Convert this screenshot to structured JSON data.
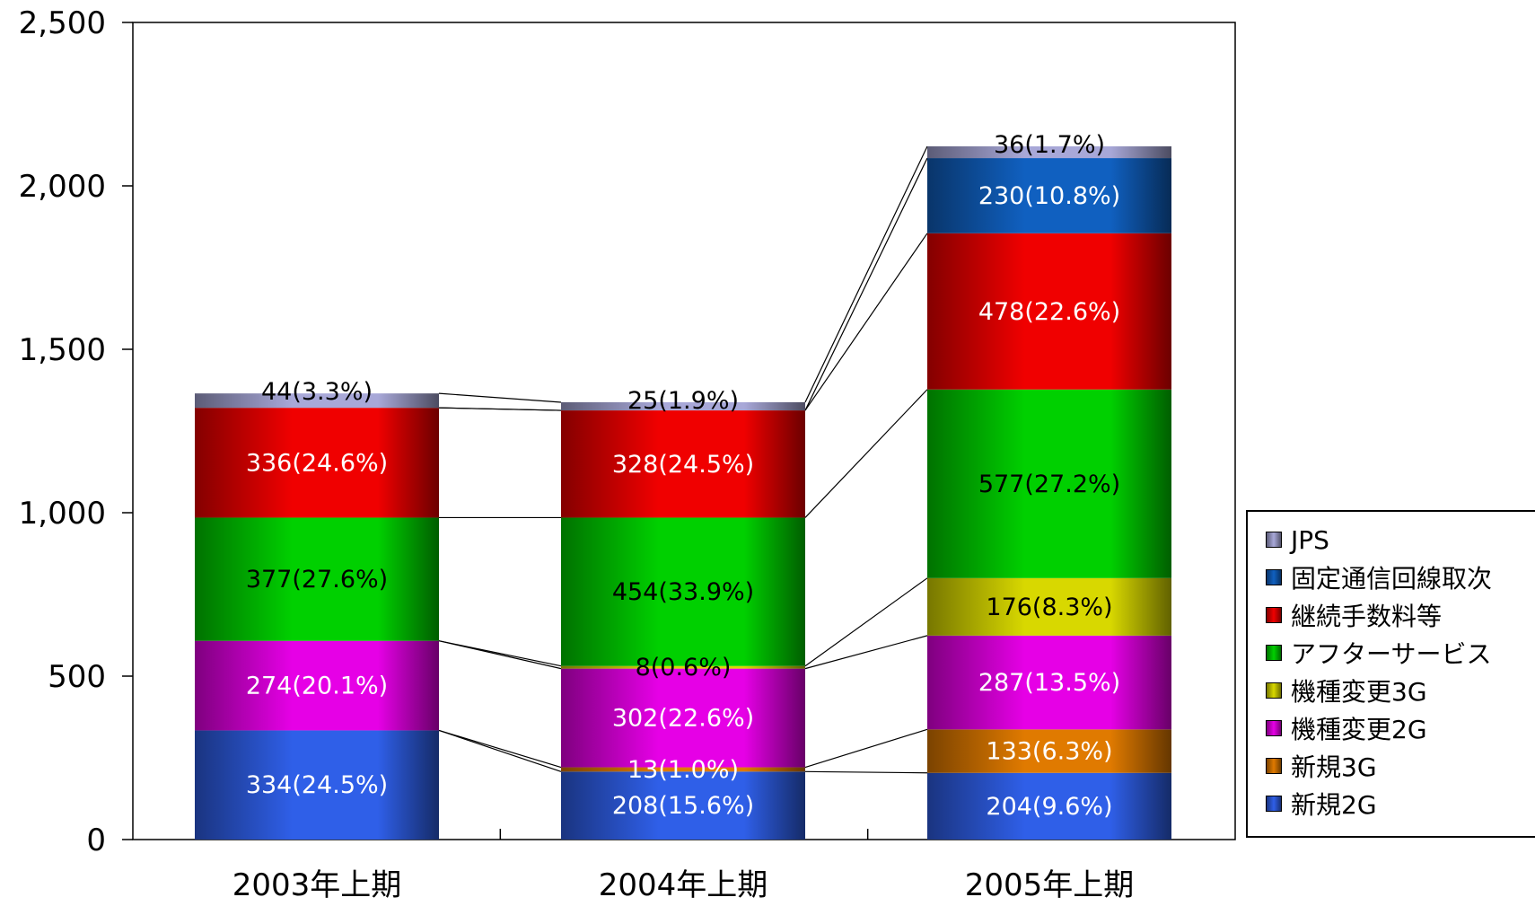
{
  "chart_data": {
    "type": "bar",
    "stacked": true,
    "title": "",
    "xlabel": "",
    "ylabel": "",
    "ylim": [
      0,
      2500
    ],
    "yticks": [
      "0",
      "500",
      "1,000",
      "1,500",
      "2,000",
      "2,500"
    ],
    "categories": [
      "2003年上期",
      "2004年上期",
      "2005年上期"
    ],
    "legend_position": "right",
    "series": [
      {
        "name": "新規2G",
        "color": "#2f5fe8",
        "values": [
          334,
          208,
          204
        ],
        "labels": [
          "334(24.5%)",
          "208(15.6%)",
          "204(9.6%)"
        ]
      },
      {
        "name": "新規3G",
        "color": "#e07a00",
        "values": [
          0,
          13,
          133
        ],
        "labels": [
          "",
          "13(1.0%)",
          "133(6.3%)"
        ]
      },
      {
        "name": "機種変更2G",
        "color": "#e600e6",
        "values": [
          274,
          302,
          287
        ],
        "labels": [
          "274(20.1%)",
          "302(22.6%)",
          "287(13.5%)"
        ]
      },
      {
        "name": "機種変更3G",
        "color": "#d8d800",
        "values": [
          0,
          8,
          176
        ],
        "labels": [
          "",
          "8(0.6%)",
          "176(8.3%)"
        ]
      },
      {
        "name": "アフターサービス",
        "color": "#00d000",
        "values": [
          377,
          454,
          577
        ],
        "labels": [
          "377(27.6%)",
          "454(33.9%)",
          "577(27.2%)"
        ]
      },
      {
        "name": "継続手数料等",
        "color": "#f00000",
        "values": [
          336,
          328,
          478
        ],
        "labels": [
          "336(24.6%)",
          "328(24.5%)",
          "478(22.6%)"
        ]
      },
      {
        "name": "固定通信回線取次",
        "color": "#1060c0",
        "values": [
          0,
          0,
          230
        ],
        "labels": [
          "",
          "",
          "230(10.8%)"
        ]
      },
      {
        "name": "JPS",
        "color": "#a8a8d8",
        "values": [
          44,
          25,
          36
        ],
        "labels": [
          "44(3.3%)",
          "25(1.9%)",
          "36(1.7%)"
        ]
      }
    ]
  }
}
